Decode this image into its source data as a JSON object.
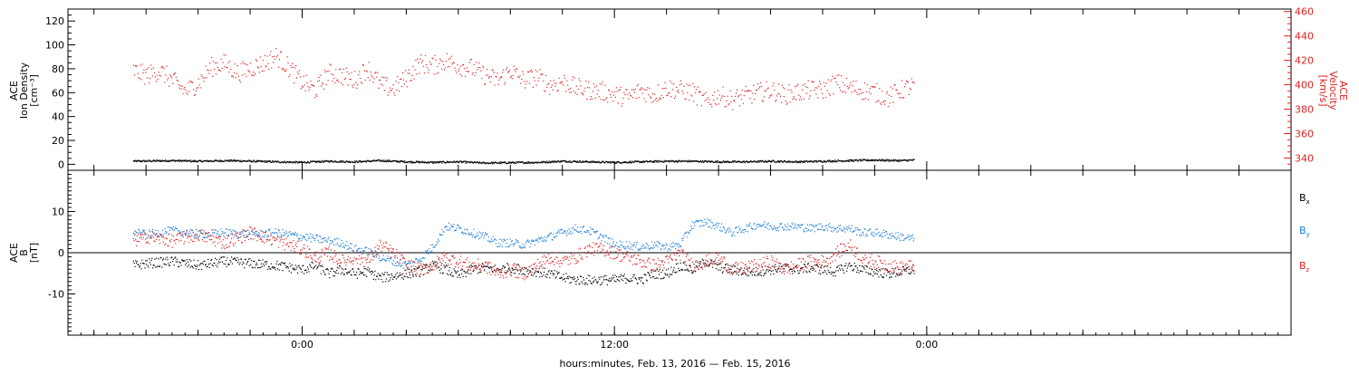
{
  "chart_data": [
    {
      "type": "scatter",
      "panel": "top",
      "ylabel_lines": [
        "ACE",
        "Ion Density",
        "[cm⁻³]"
      ],
      "ylabel_right_lines": [
        "ACE",
        "Velocity",
        "[km/s]"
      ],
      "ylim": [
        -5,
        130
      ],
      "yticks": [
        0,
        20,
        40,
        60,
        80,
        100,
        120
      ],
      "ylim_right": [
        330,
        462
      ],
      "yticks_right": [
        340,
        360,
        380,
        400,
        420,
        440,
        460
      ],
      "right_axis_color": "#dd2222",
      "series": [
        {
          "color": "#000000",
          "axis": "left",
          "anchors": [
            [
              -6.5,
              3
            ],
            [
              -5,
              3.5
            ],
            [
              -4,
              3
            ],
            [
              -2.8,
              3.5
            ],
            [
              -1,
              2.5
            ],
            [
              0,
              2
            ],
            [
              1,
              3
            ],
            [
              2,
              2.5
            ],
            [
              3,
              3.5
            ],
            [
              4,
              2.5
            ],
            [
              5,
              2
            ],
            [
              6,
              2.5
            ],
            [
              7,
              1.5
            ],
            [
              8,
              1.8
            ],
            [
              9,
              2
            ],
            [
              10,
              3
            ],
            [
              11,
              2.5
            ],
            [
              12,
              2
            ],
            [
              13,
              2.5
            ],
            [
              14,
              3
            ],
            [
              15,
              3
            ],
            [
              16,
              2.5
            ],
            [
              17,
              2.5
            ],
            [
              18,
              3
            ],
            [
              19,
              2.5
            ],
            [
              20,
              3
            ],
            [
              21,
              3.5
            ],
            [
              22,
              4
            ],
            [
              23,
              3.5
            ],
            [
              23.5,
              4
            ]
          ]
        },
        {
          "color": "#dd2222",
          "axis": "right",
          "anchors": [
            [
              -6.5,
              412
            ],
            [
              -6,
              408
            ],
            [
              -5.5,
              412
            ],
            [
              -5,
              404
            ],
            [
              -4.5,
              395
            ],
            [
              -4,
              402
            ],
            [
              -3.5,
              415
            ],
            [
              -3,
              418
            ],
            [
              -2.5,
              410
            ],
            [
              -2,
              414
            ],
            [
              -1.5,
              418
            ],
            [
              -1,
              424
            ],
            [
              -0.5,
              414
            ],
            [
              0,
              402
            ],
            [
              0.5,
              396
            ],
            [
              1,
              410
            ],
            [
              1.5,
              408
            ],
            [
              2,
              404
            ],
            [
              2.5,
              414
            ],
            [
              3,
              400
            ],
            [
              3.5,
              397
            ],
            [
              4,
              406
            ],
            [
              4.5,
              418
            ],
            [
              5,
              416
            ],
            [
              5.5,
              420
            ],
            [
              6,
              416
            ],
            [
              6.5,
              414
            ],
            [
              7,
              408
            ],
            [
              7.5,
              404
            ],
            [
              8,
              412
            ],
            [
              8.5,
              404
            ],
            [
              9,
              407
            ],
            [
              9.5,
              400
            ],
            [
              10,
              403
            ],
            [
              10.5,
              398
            ],
            [
              11,
              396
            ],
            [
              11.5,
              395
            ],
            [
              12,
              392
            ],
            [
              12.5,
              390
            ],
            [
              13,
              396
            ],
            [
              13.5,
              392
            ],
            [
              14,
              398
            ],
            [
              14.5,
              396
            ],
            [
              15,
              394
            ],
            [
              15.5,
              386
            ],
            [
              16,
              392
            ],
            [
              16.5,
              388
            ],
            [
              17,
              391
            ],
            [
              17.5,
              394
            ],
            [
              18,
              396
            ],
            [
              18.5,
              392
            ],
            [
              19,
              394
            ],
            [
              19.5,
              396
            ],
            [
              20,
              396
            ],
            [
              20.5,
              402
            ],
            [
              21,
              398
            ],
            [
              21.5,
              396
            ],
            [
              22,
              394
            ],
            [
              22.5,
              390
            ],
            [
              23,
              396
            ],
            [
              23.5,
              400
            ]
          ],
          "spread": 8
        }
      ]
    },
    {
      "type": "scatter",
      "panel": "bottom",
      "ylabel_lines": [
        "ACE",
        "B",
        "[nT]"
      ],
      "ylim": [
        -20,
        20
      ],
      "yticks": [
        -10,
        0,
        10
      ],
      "zero_line": true,
      "series": [
        {
          "name": "Bx",
          "color": "#000000",
          "anchors": [
            [
              -6.5,
              -3
            ],
            [
              -6,
              -2.5
            ],
            [
              -5,
              -2
            ],
            [
              -4,
              -3
            ],
            [
              -3,
              -2
            ],
            [
              -2,
              -2.5
            ],
            [
              -1,
              -3
            ],
            [
              0,
              -4
            ],
            [
              0.5,
              -3
            ],
            [
              1,
              -5
            ],
            [
              1.5,
              -4
            ],
            [
              2,
              -5
            ],
            [
              2.5,
              -4.5
            ],
            [
              3,
              -6
            ],
            [
              3.5,
              -5.5
            ],
            [
              4,
              -5
            ],
            [
              4.5,
              -4.5
            ],
            [
              5,
              -3
            ],
            [
              5.5,
              -4
            ],
            [
              6,
              -5.5
            ],
            [
              6.5,
              -4
            ],
            [
              7,
              -3.5
            ],
            [
              7.5,
              -4
            ],
            [
              8,
              -3.5
            ],
            [
              8.5,
              -4
            ],
            [
              9,
              -4.5
            ],
            [
              9.5,
              -5
            ],
            [
              10,
              -6
            ],
            [
              10.5,
              -6.5
            ],
            [
              11,
              -6.5
            ],
            [
              11.5,
              -6.5
            ],
            [
              12,
              -6.5
            ],
            [
              12.5,
              -6
            ],
            [
              13,
              -6.5
            ],
            [
              13.5,
              -5
            ],
            [
              14,
              -5
            ],
            [
              14.5,
              -3
            ],
            [
              15,
              -4
            ],
            [
              15.5,
              -2
            ],
            [
              16,
              -3.5
            ],
            [
              16.5,
              -4
            ],
            [
              17,
              -4.5
            ],
            [
              17.5,
              -4.5
            ],
            [
              18,
              -4
            ],
            [
              18.5,
              -3.5
            ],
            [
              19,
              -4
            ],
            [
              19.5,
              -3.5
            ],
            [
              20,
              -4
            ],
            [
              20.5,
              -4.5
            ],
            [
              21,
              -3
            ],
            [
              21.5,
              -4
            ],
            [
              22,
              -4.5
            ],
            [
              22.5,
              -5
            ],
            [
              23,
              -4.5
            ],
            [
              23.5,
              -4
            ]
          ],
          "spread": 1.2
        },
        {
          "name": "By",
          "color": "#1f7fd6",
          "anchors": [
            [
              -6.5,
              5
            ],
            [
              -6,
              4.5
            ],
            [
              -5,
              5.5
            ],
            [
              -4,
              4.5
            ],
            [
              -3,
              5
            ],
            [
              -2,
              4.5
            ],
            [
              -1,
              5
            ],
            [
              0,
              4
            ],
            [
              0.5,
              3.5
            ],
            [
              1,
              3
            ],
            [
              1.5,
              2.5
            ],
            [
              2,
              1
            ],
            [
              2.5,
              0.5
            ],
            [
              3,
              -1
            ],
            [
              3.5,
              -2
            ],
            [
              4,
              -3
            ],
            [
              4.5,
              -1.5
            ],
            [
              5,
              1.5
            ],
            [
              5.5,
              6.5
            ],
            [
              6,
              6
            ],
            [
              6.5,
              5
            ],
            [
              7,
              4
            ],
            [
              7.5,
              2.5
            ],
            [
              8,
              2.5
            ],
            [
              8.5,
              2
            ],
            [
              9,
              3
            ],
            [
              9.5,
              4
            ],
            [
              10,
              5
            ],
            [
              10.5,
              6
            ],
            [
              11,
              5.5
            ],
            [
              11.5,
              4
            ],
            [
              12,
              2
            ],
            [
              12.5,
              2
            ],
            [
              13,
              1.5
            ],
            [
              13.5,
              2
            ],
            [
              14,
              1.5
            ],
            [
              14.5,
              2
            ],
            [
              15,
              7
            ],
            [
              15.5,
              7.5
            ],
            [
              16,
              6.5
            ],
            [
              16.5,
              5
            ],
            [
              17,
              6
            ],
            [
              17.5,
              7
            ],
            [
              18,
              6.5
            ],
            [
              18.5,
              6.5
            ],
            [
              19,
              6.5
            ],
            [
              19.5,
              6
            ],
            [
              20,
              6.5
            ],
            [
              20.5,
              6
            ],
            [
              21,
              6
            ],
            [
              21.5,
              5
            ],
            [
              22,
              5
            ],
            [
              22.5,
              4.5
            ],
            [
              23,
              4
            ],
            [
              23.5,
              3.5
            ]
          ],
          "spread": 1.0
        },
        {
          "name": "Bz",
          "color": "#dd2222",
          "anchors": [
            [
              -6.5,
              3
            ],
            [
              -6,
              4
            ],
            [
              -5,
              3
            ],
            [
              -4,
              4.5
            ],
            [
              -3,
              2.5
            ],
            [
              -2,
              5
            ],
            [
              -1,
              3
            ],
            [
              0,
              1
            ],
            [
              0.5,
              -1
            ],
            [
              1,
              0
            ],
            [
              1.5,
              -2
            ],
            [
              2,
              -1
            ],
            [
              2.5,
              -2
            ],
            [
              3,
              2
            ],
            [
              3.5,
              0
            ],
            [
              4,
              -3
            ],
            [
              4.5,
              -4
            ],
            [
              5,
              -3
            ],
            [
              5.5,
              -1
            ],
            [
              6,
              -2
            ],
            [
              6.5,
              -3
            ],
            [
              7,
              -3
            ],
            [
              7.5,
              -5
            ],
            [
              8,
              -4
            ],
            [
              8.5,
              -5
            ],
            [
              9,
              -3
            ],
            [
              9.5,
              -1
            ],
            [
              10,
              -2
            ],
            [
              10.5,
              -1
            ],
            [
              11,
              1
            ],
            [
              11.5,
              1
            ],
            [
              12,
              0
            ],
            [
              12.5,
              -1
            ],
            [
              13,
              -2
            ],
            [
              13.5,
              -3
            ],
            [
              14,
              -2
            ],
            [
              14.5,
              0
            ],
            [
              15,
              -3
            ],
            [
              15.5,
              -2
            ],
            [
              16,
              -1
            ],
            [
              16.5,
              -4
            ],
            [
              17,
              -3.5
            ],
            [
              17.5,
              -3
            ],
            [
              18,
              -2
            ],
            [
              18.5,
              -4
            ],
            [
              19,
              -3
            ],
            [
              19.5,
              -2
            ],
            [
              20,
              -2
            ],
            [
              20.5,
              0
            ],
            [
              21,
              2
            ],
            [
              21.5,
              -1
            ],
            [
              22,
              -2
            ],
            [
              22.5,
              -3
            ],
            [
              23,
              -3.5
            ],
            [
              23.5,
              -3
            ]
          ],
          "spread": 1.6
        }
      ],
      "legend_labels": [
        {
          "main": "B",
          "sub": "x",
          "color": "#000000",
          "key": "bx"
        },
        {
          "main": "B",
          "sub": "y",
          "color": "#1f7fd6",
          "key": "by"
        },
        {
          "main": "B",
          "sub": "z",
          "color": "#dd2222",
          "key": "bz"
        }
      ]
    }
  ],
  "x_axis": {
    "range_hours": [
      -9,
      38
    ],
    "major_ticks": [
      {
        "hour": 0,
        "label": "0:00"
      },
      {
        "hour": 12,
        "label": "12:00"
      },
      {
        "hour": 24,
        "label": "0:00"
      }
    ],
    "minor_tick_step_hours": 2,
    "data_end_hour": 23.5
  },
  "xlabel": "hours:minutes, Feb. 13, 2016 — Feb. 15, 2016"
}
